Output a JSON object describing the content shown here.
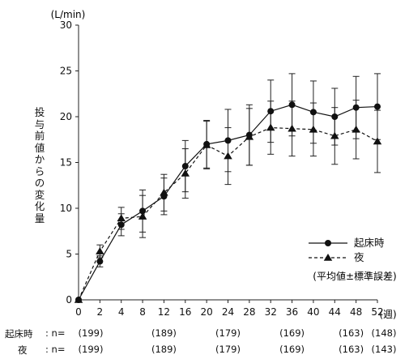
{
  "chart_data": {
    "type": "line",
    "y_unit_label": "(L/min)",
    "ylabel": "投与前値からの変化量",
    "x_unit_label": "(週)",
    "x_ticks": [
      0,
      2,
      4,
      8,
      12,
      16,
      20,
      24,
      28,
      32,
      36,
      40,
      44,
      48,
      52
    ],
    "ylim": [
      0,
      30
    ],
    "y_ticks": [
      0,
      5,
      10,
      15,
      20,
      25,
      30
    ],
    "x_scale": "categorical-evenly-spaced",
    "error_bar_note": "(平均値±標準誤差)",
    "legend_position": "right",
    "series": [
      {
        "name": "起床時",
        "marker": "circle",
        "line": "solid",
        "values": [
          0,
          4.2,
          8.2,
          9.7,
          11.3,
          14.6,
          17.0,
          17.4,
          18.0,
          20.6,
          21.3,
          20.5,
          20.0,
          21.0,
          21.1
        ],
        "error": [
          0,
          0.6,
          1.2,
          2.3,
          2.0,
          2.8,
          2.6,
          3.4,
          3.3,
          3.4,
          3.4,
          3.4,
          3.1,
          3.4,
          3.6
        ]
      },
      {
        "name": "夜",
        "marker": "triangle",
        "line": "dashed",
        "values": [
          0,
          5.3,
          8.9,
          9.1,
          11.7,
          13.8,
          16.9,
          15.7,
          17.8,
          18.8,
          18.7,
          18.6,
          17.9,
          18.6,
          17.3
        ],
        "error": [
          0,
          0.7,
          1.2,
          2.3,
          2.0,
          2.7,
          2.6,
          3.1,
          3.1,
          2.9,
          3.0,
          2.9,
          3.1,
          3.2,
          3.4
        ]
      }
    ],
    "n_table": {
      "prefix": ": n=",
      "rows": [
        {
          "label": "起床時",
          "values": [
            "(199)",
            "",
            "",
            "",
            "(189)",
            "",
            "",
            "(179)",
            "",
            "",
            "(169)",
            "",
            "",
            "(163)",
            "(148)"
          ]
        },
        {
          "label": "夜",
          "values": [
            "(199)",
            "",
            "",
            "",
            "(189)",
            "",
            "",
            "(179)",
            "",
            "",
            "(169)",
            "",
            "",
            "(163)",
            "(143)"
          ]
        }
      ]
    }
  }
}
